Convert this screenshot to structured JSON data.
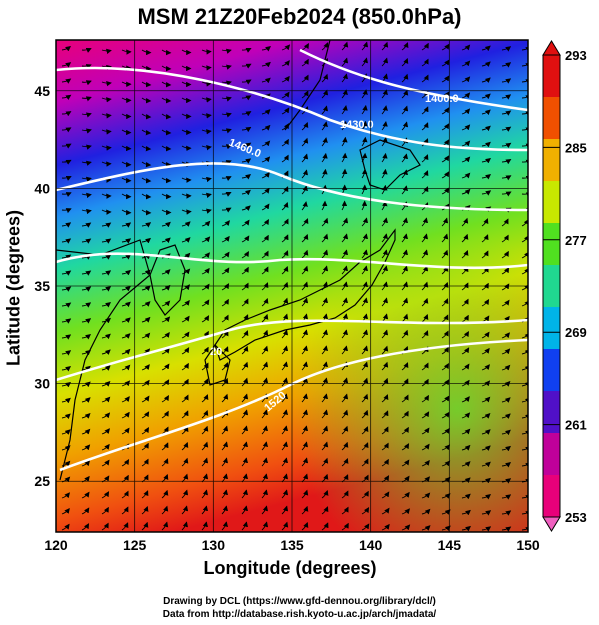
{
  "title": "MSM 21Z20Feb2024 (850.0hPa)",
  "map": {
    "xlabel": "Longitude (degrees)",
    "ylabel": "Latitude  (degrees)",
    "lon_range": [
      120,
      150
    ],
    "lat_range": [
      22.4,
      47.6
    ],
    "lon_ticks": [
      "120",
      "125",
      "130",
      "135",
      "140",
      "145",
      "150"
    ],
    "lat_ticks": [
      "25",
      "30",
      "35",
      "40",
      "45"
    ],
    "contours": [
      {
        "label": "1400.0"
      },
      {
        "label": "1430.0"
      },
      {
        "label": "1460.0"
      },
      {
        "label": "20"
      },
      {
        "label": "1520"
      }
    ]
  },
  "colorbar": {
    "ticks": [
      "293",
      "285",
      "277",
      "269",
      "261",
      "253"
    ],
    "min": 253,
    "max": 293,
    "colors": [
      "#e8007a",
      "#c0009a",
      "#5010c8",
      "#1040f0",
      "#00b4e8",
      "#20d890",
      "#50e020",
      "#c8e800",
      "#f0b000",
      "#f05000",
      "#e01010"
    ]
  },
  "credits": {
    "line1": "Drawing by DCL (https://www.gfd-dennou.org/library/dcl/)",
    "line2": "Data from http://database.rish.kyoto-u.ac.jp/arch/jmadata/"
  }
}
